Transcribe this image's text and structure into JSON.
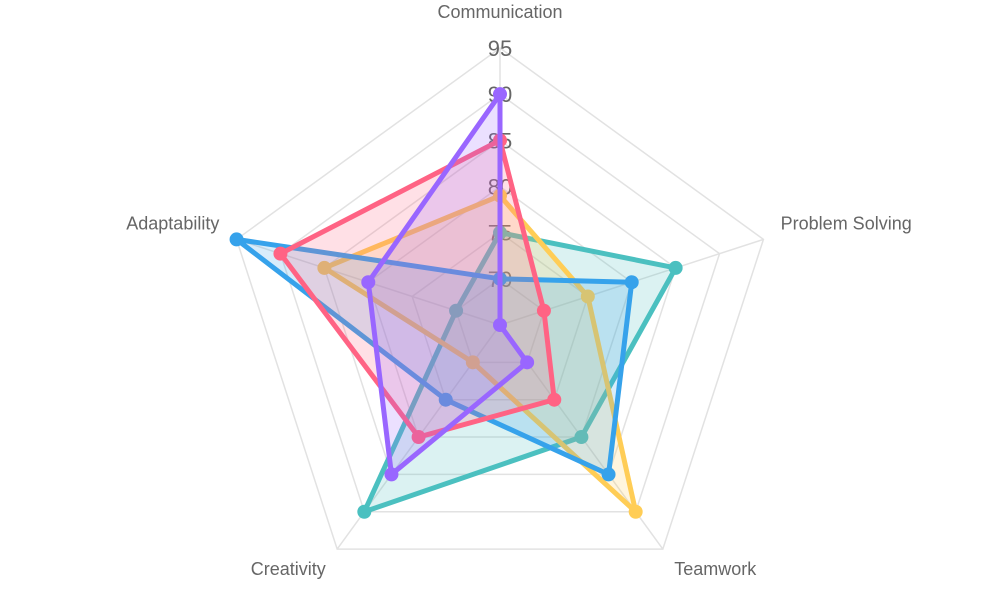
{
  "chart_data": {
    "type": "radar",
    "title": "",
    "axes": [
      "Communication",
      "Problem Solving",
      "Teamwork",
      "Creativity",
      "Adaptability"
    ],
    "r_range": [
      65,
      95
    ],
    "r_ticks": [
      "70",
      "75",
      "80",
      "85",
      "90",
      "95"
    ],
    "grid": true,
    "legend": "none",
    "series": [
      {
        "color": "#4bc0c0",
        "values": [
          75,
          85,
          80,
          90,
          70
        ]
      },
      {
        "color": "#ffcd56",
        "values": [
          79,
          75,
          90,
          70,
          85
        ]
      },
      {
        "color": "#36a2eb",
        "values": [
          70,
          80,
          85,
          75,
          95
        ]
      },
      {
        "color": "#ff6384",
        "values": [
          85,
          70,
          75,
          80,
          90
        ]
      },
      {
        "color": "#9966ff",
        "values": [
          90,
          65,
          70,
          85,
          80
        ]
      }
    ]
  }
}
